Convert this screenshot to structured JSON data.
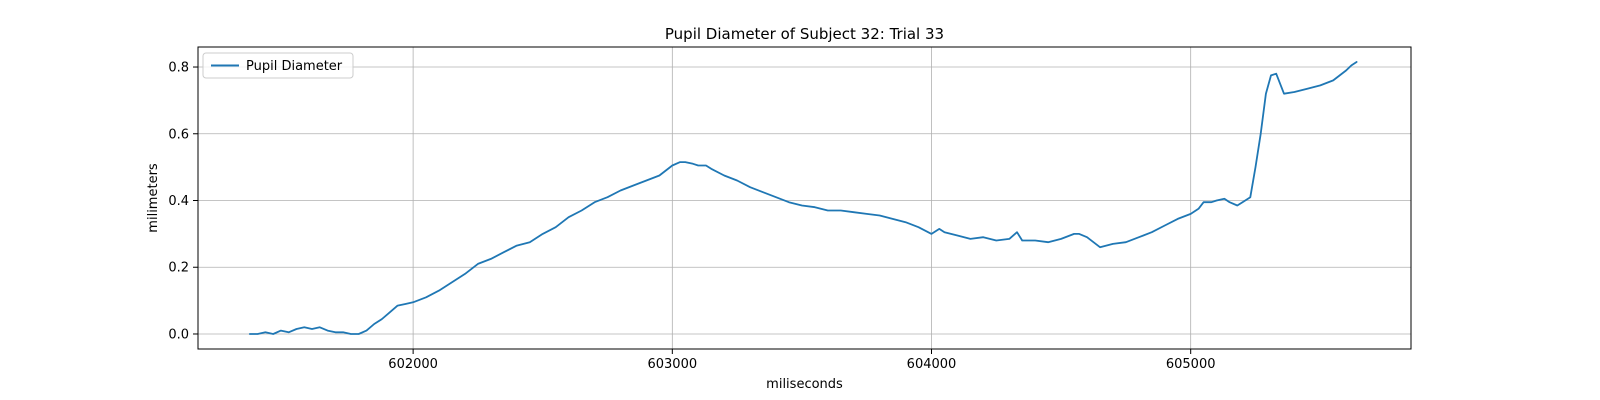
{
  "chart_data": {
    "type": "line",
    "title": "Pupil Diameter of Subject 32: Trial 33",
    "xlabel": "miliseconds",
    "ylabel": "milimeters",
    "xlim": [
      601170,
      605850
    ],
    "ylim": [
      -0.045,
      0.86
    ],
    "xticks": [
      602000,
      603000,
      604000,
      605000
    ],
    "yticks": [
      0.0,
      0.2,
      0.4,
      0.6,
      0.8
    ],
    "xtick_labels": [
      "602000",
      "603000",
      "604000",
      "605000"
    ],
    "ytick_labels": [
      "0.0",
      "0.2",
      "0.4",
      "0.6",
      "0.8"
    ],
    "grid": true,
    "legend_position": "upper-left",
    "color": "#1f77b4",
    "series": [
      {
        "name": "Pupil Diameter",
        "x": [
          601370,
          601400,
          601430,
          601460,
          601490,
          601520,
          601550,
          601580,
          601610,
          601640,
          601670,
          601700,
          601730,
          601760,
          601790,
          601820,
          601850,
          601880,
          601910,
          601940,
          601970,
          602000,
          602050,
          602100,
          602150,
          602200,
          602250,
          602300,
          602350,
          602400,
          602450,
          602500,
          602550,
          602600,
          602650,
          602700,
          602750,
          602800,
          602850,
          602900,
          602950,
          603000,
          603030,
          603050,
          603080,
          603100,
          603130,
          603150,
          603200,
          603250,
          603300,
          603350,
          603400,
          603450,
          603500,
          603550,
          603600,
          603650,
          603700,
          603750,
          603800,
          603850,
          603900,
          603950,
          604000,
          604030,
          604050,
          604100,
          604150,
          604200,
          604250,
          604300,
          604330,
          604350,
          604400,
          604450,
          604500,
          604550,
          604570,
          604600,
          604650,
          604700,
          604750,
          604800,
          604850,
          604900,
          604950,
          605000,
          605030,
          605050,
          605080,
          605100,
          605130,
          605150,
          605180,
          605200,
          605230,
          605250,
          605270,
          605290,
          605310,
          605330,
          605360,
          605400,
          605450,
          605500,
          605550,
          605600,
          605620,
          605640
        ],
        "y": [
          0.0,
          0.0,
          0.005,
          0.0,
          0.01,
          0.005,
          0.015,
          0.02,
          0.015,
          0.02,
          0.01,
          0.005,
          0.005,
          0.0,
          0.0,
          0.01,
          0.03,
          0.045,
          0.065,
          0.085,
          0.09,
          0.095,
          0.11,
          0.13,
          0.155,
          0.18,
          0.21,
          0.225,
          0.245,
          0.265,
          0.275,
          0.3,
          0.32,
          0.35,
          0.37,
          0.395,
          0.41,
          0.43,
          0.445,
          0.46,
          0.475,
          0.505,
          0.515,
          0.515,
          0.51,
          0.505,
          0.505,
          0.495,
          0.475,
          0.46,
          0.44,
          0.425,
          0.41,
          0.395,
          0.385,
          0.38,
          0.37,
          0.37,
          0.365,
          0.36,
          0.355,
          0.345,
          0.335,
          0.32,
          0.3,
          0.315,
          0.305,
          0.295,
          0.285,
          0.29,
          0.28,
          0.285,
          0.305,
          0.28,
          0.28,
          0.275,
          0.285,
          0.3,
          0.3,
          0.29,
          0.26,
          0.27,
          0.275,
          0.29,
          0.305,
          0.325,
          0.345,
          0.36,
          0.375,
          0.395,
          0.395,
          0.4,
          0.405,
          0.395,
          0.385,
          0.395,
          0.41,
          0.5,
          0.6,
          0.72,
          0.775,
          0.78,
          0.72,
          0.725,
          0.735,
          0.745,
          0.76,
          0.79,
          0.805,
          0.815
        ]
      }
    ]
  }
}
